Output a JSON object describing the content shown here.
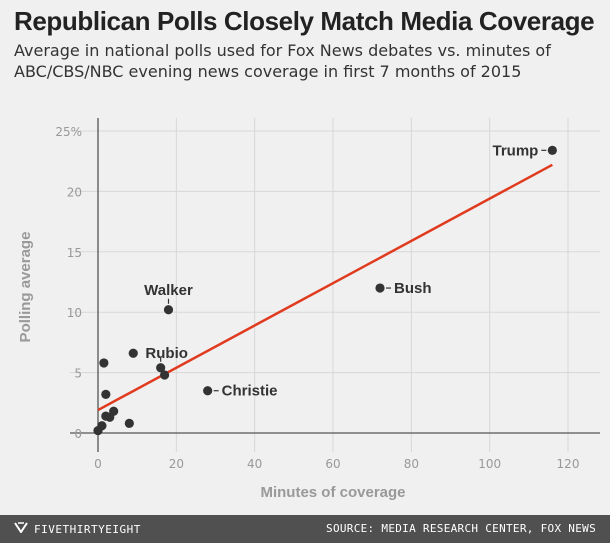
{
  "title": "Republican Polls Closely Match Media Coverage",
  "subtitle": "Average in national polls used for Fox News debates vs. minutes of ABC/CBS/NBC evening news coverage in first 7 months of 2015",
  "footer": {
    "brand": "FIVETHIRTYEIGHT",
    "source": "SOURCE: MEDIA RESEARCH CENTER, FOX NEWS"
  },
  "chart_data": {
    "type": "scatter",
    "title": "Republican Polls Closely Match Media Coverage",
    "xlabel": "Minutes of coverage",
    "ylabel": "Polling average",
    "xlim": [
      0,
      120
    ],
    "ylim": [
      0,
      25
    ],
    "x_ticks": [
      0,
      20,
      40,
      60,
      80,
      100,
      120
    ],
    "y_ticks": [
      0,
      5,
      10,
      15,
      20,
      25
    ],
    "y_tick_labels": [
      "0",
      "5",
      "10",
      "15",
      "20",
      "25%"
    ],
    "grid": true,
    "points": [
      {
        "label": "Trump",
        "x": 116,
        "y": 23.4
      },
      {
        "label": "Bush",
        "x": 72,
        "y": 12.0
      },
      {
        "label": "Walker",
        "x": 18,
        "y": 10.2
      },
      {
        "label": "Rubio",
        "x": 16,
        "y": 5.4
      },
      {
        "label": "Christie",
        "x": 28,
        "y": 3.5
      },
      {
        "label": "",
        "x": 9,
        "y": 6.6
      },
      {
        "label": "",
        "x": 1.5,
        "y": 5.8
      },
      {
        "label": "",
        "x": 17,
        "y": 4.8
      },
      {
        "label": "",
        "x": 2,
        "y": 3.2
      },
      {
        "label": "",
        "x": 4,
        "y": 1.8
      },
      {
        "label": "",
        "x": 2,
        "y": 1.4
      },
      {
        "label": "",
        "x": 3,
        "y": 1.3
      },
      {
        "label": "",
        "x": 8,
        "y": 0.8
      },
      {
        "label": "",
        "x": 1,
        "y": 0.6
      },
      {
        "label": "",
        "x": 0,
        "y": 0.2
      }
    ],
    "trendline": {
      "x": [
        0,
        116
      ],
      "y": [
        1.9,
        22.2
      ]
    },
    "colors": {
      "points": "#333333",
      "trendline": "#e03a1f",
      "grid": "#d7d7d7",
      "axis": "#555555"
    }
  }
}
